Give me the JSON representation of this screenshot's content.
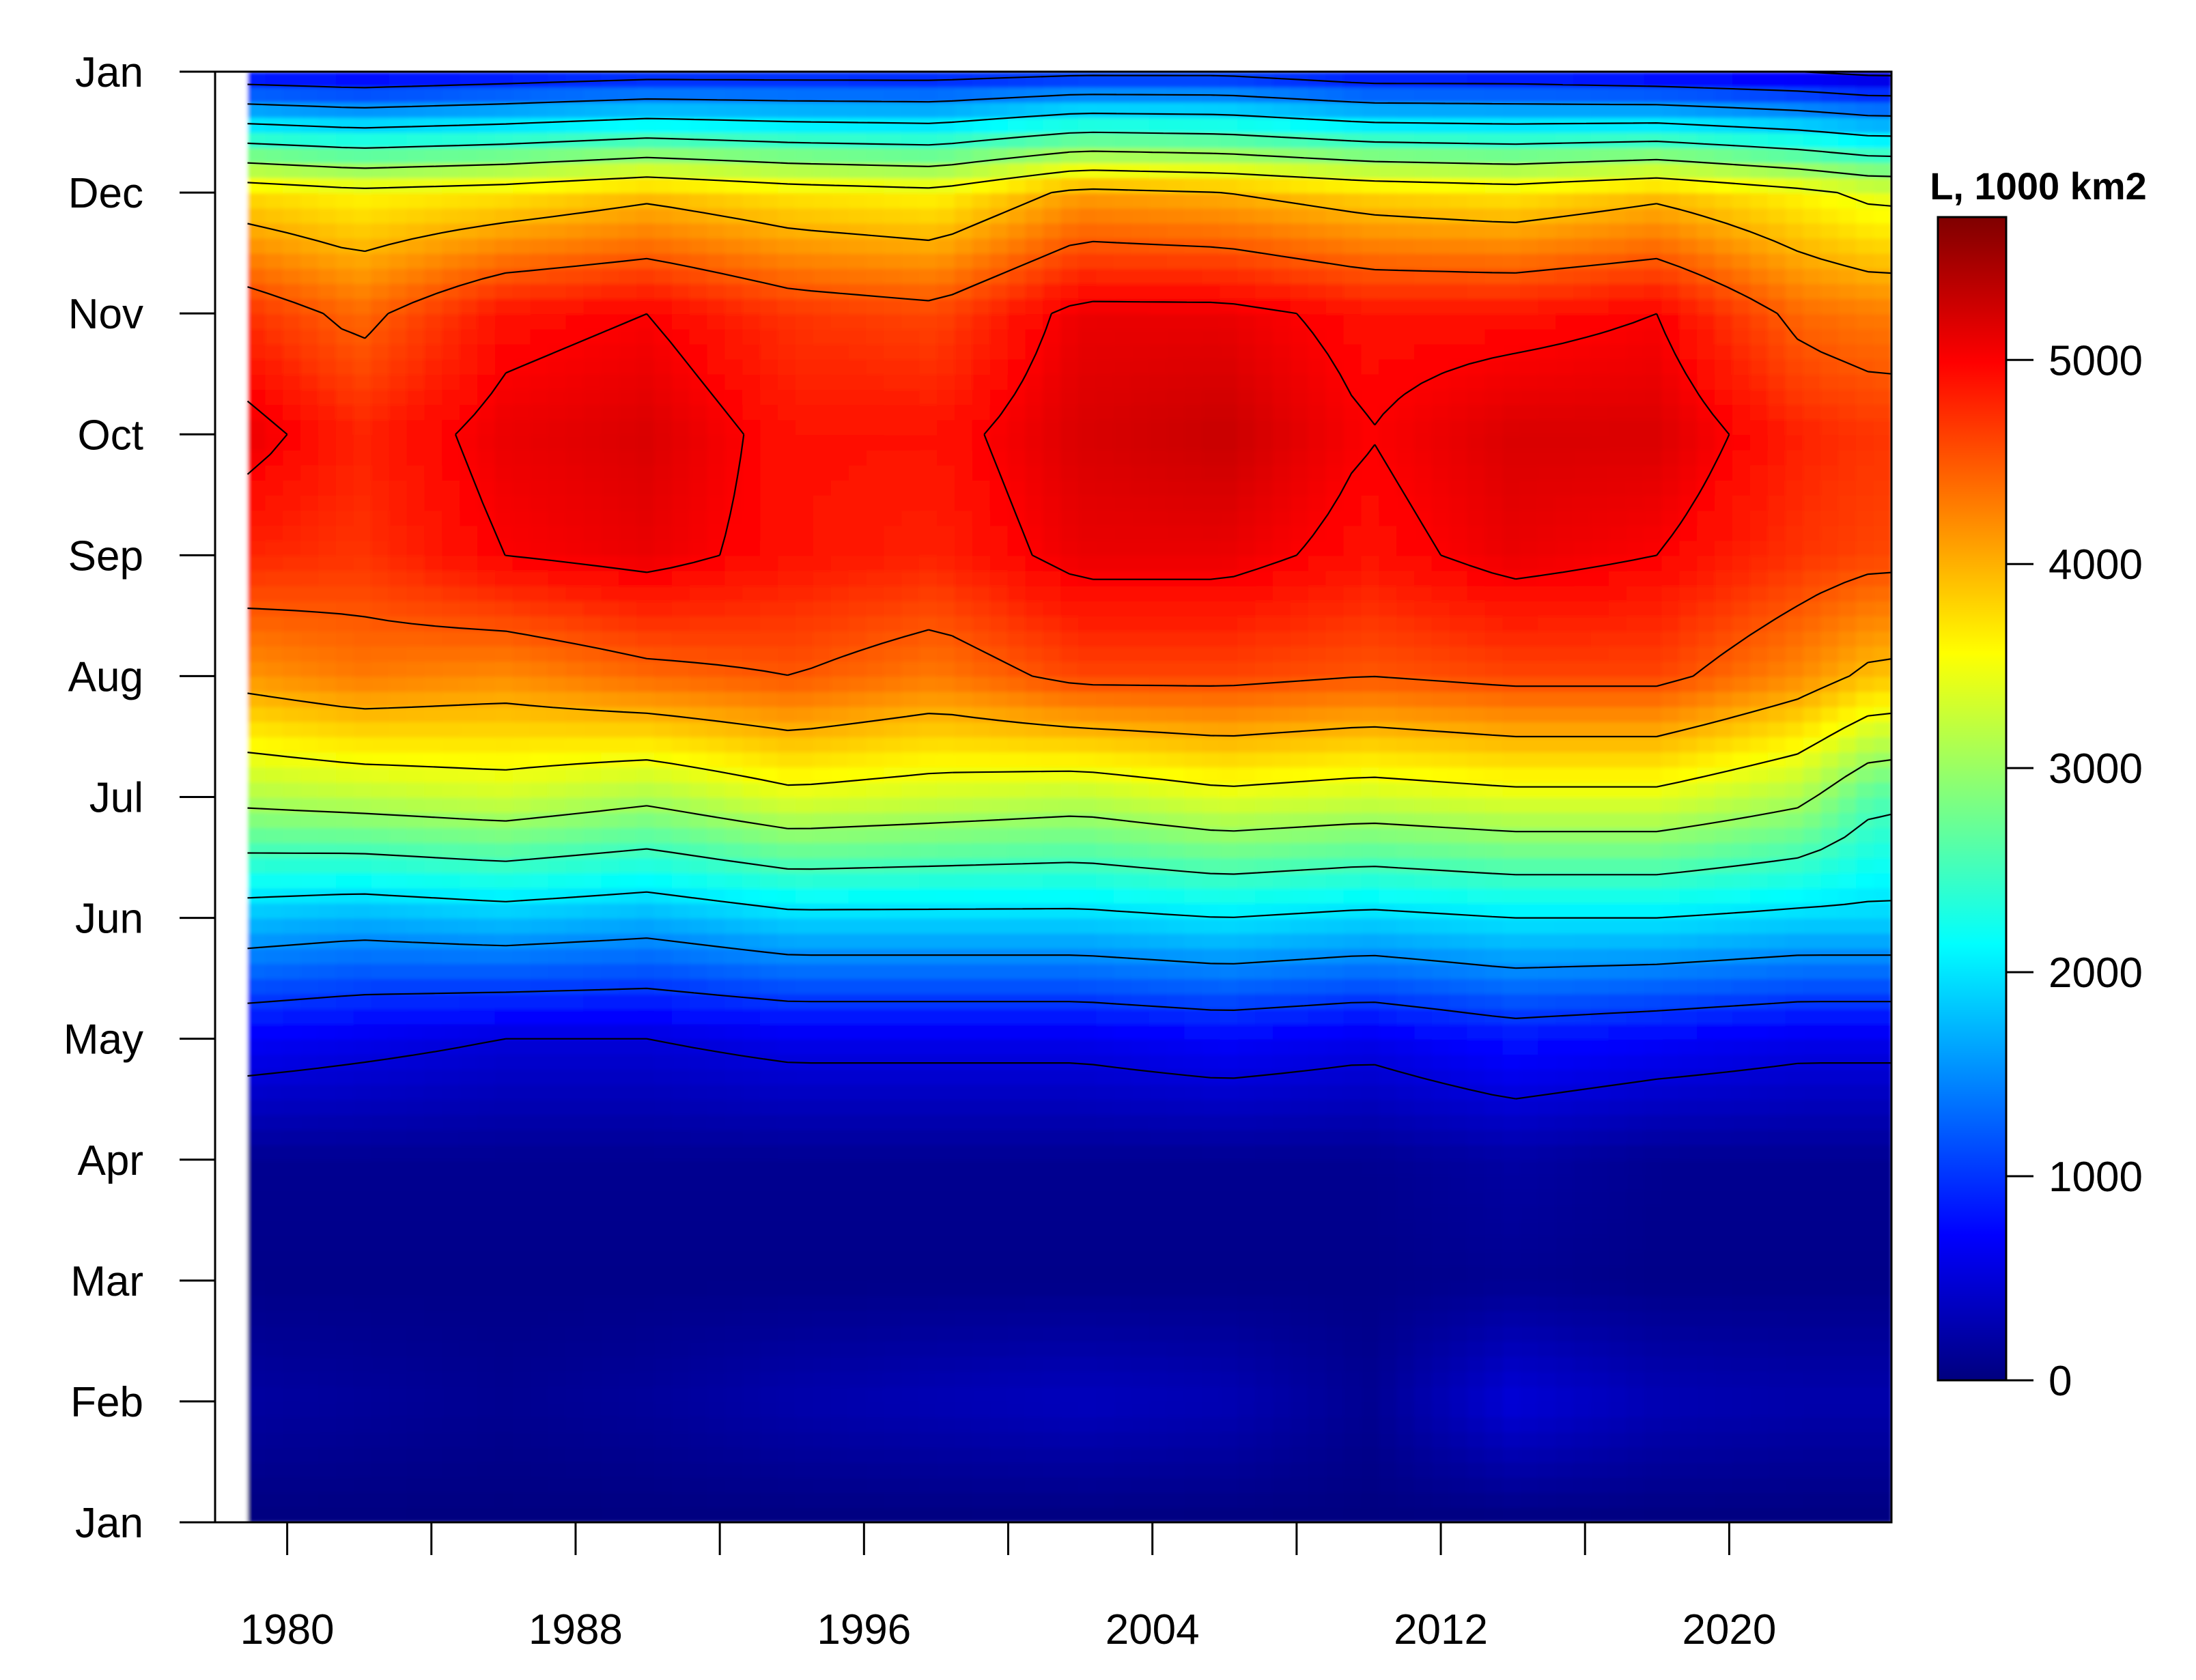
{
  "chart_data": {
    "type": "heatmap",
    "title": "",
    "xlabel": "",
    "ylabel": "",
    "x_ticks": [
      1980,
      1984,
      1988,
      1992,
      1996,
      2000,
      2004,
      2008,
      2012,
      2016,
      2020
    ],
    "x_tick_labels": [
      "1980",
      "1988",
      "1996",
      "2004",
      "2012",
      "2020"
    ],
    "x_range": [
      1978,
      2024.5
    ],
    "y_tick_labels": [
      "Jan",
      "Feb",
      "Mar",
      "Apr",
      "May",
      "Jun",
      "Jul",
      "Aug",
      "Sep",
      "Oct",
      "Nov",
      "Dec",
      "Jan"
    ],
    "y_range_months": [
      0,
      12
    ],
    "legend": {
      "title": "L, 1000 km2",
      "ticks": [
        0,
        1000,
        2000,
        3000,
        4000,
        5000
      ],
      "tick_labels": [
        "0",
        "1000",
        "2000",
        "3000",
        "4000",
        "5000"
      ],
      "range": [
        0,
        5700
      ],
      "colormap": [
        "#00007f",
        "#0000ff",
        "#007fff",
        "#00ffff",
        "#7fff7f",
        "#ffff00",
        "#ff7f00",
        "#ff0000",
        "#7f0000"
      ],
      "placement": "right"
    },
    "contours": true,
    "approx_grid": {
      "years": [
        1978,
        1982,
        1986,
        1990,
        1994,
        1998,
        2002,
        2006,
        2010,
        2014,
        2018,
        2022,
        2024
      ],
      "months": [
        0,
        1,
        2,
        3,
        4,
        5,
        6,
        7,
        8,
        9,
        10,
        11,
        12
      ],
      "values": [
        [
          0,
          0,
          0,
          0,
          0,
          0,
          0,
          0,
          0,
          0,
          0,
          0,
          0
        ],
        [
          200,
          150,
          100,
          150,
          250,
          300,
          350,
          300,
          100,
          500,
          300,
          250,
          250
        ],
        [
          50,
          50,
          50,
          50,
          50,
          50,
          50,
          50,
          50,
          100,
          50,
          50,
          50
        ],
        [
          100,
          100,
          100,
          100,
          100,
          100,
          100,
          100,
          100,
          200,
          100,
          100,
          100
        ],
        [
          700,
          600,
          500,
          500,
          600,
          600,
          600,
          700,
          600,
          800,
          700,
          600,
          600
        ],
        [
          1800,
          1700,
          1800,
          1700,
          1900,
          1900,
          1900,
          2000,
          1900,
          2000,
          2000,
          1900,
          1900
        ],
        [
          3100,
          3200,
          3300,
          3100,
          3400,
          3300,
          3200,
          3400,
          3300,
          3400,
          3400,
          3100,
          2600
        ],
        [
          4100,
          4300,
          4200,
          4400,
          4500,
          4300,
          4600,
          4600,
          4500,
          4600,
          4600,
          4200,
          3900
        ],
        [
          4800,
          4700,
          5000,
          5100,
          4900,
          4800,
          5100,
          5100,
          4900,
          5100,
          5000,
          4700,
          4600
        ],
        [
          5200,
          4800,
          5100,
          5200,
          4900,
          4900,
          5200,
          5300,
          5000,
          5200,
          5200,
          4800,
          4700
        ],
        [
          4800,
          4400,
          4900,
          5000,
          4700,
          4600,
          5100,
          5100,
          4900,
          4900,
          5000,
          4400,
          4300
        ],
        [
          3800,
          3600,
          3700,
          3900,
          3700,
          3600,
          4100,
          4000,
          3800,
          3700,
          3900,
          3600,
          3400
        ],
        [
          700,
          600,
          700,
          800,
          800,
          800,
          900,
          900,
          700,
          700,
          600,
          500,
          400
        ]
      ]
    }
  }
}
